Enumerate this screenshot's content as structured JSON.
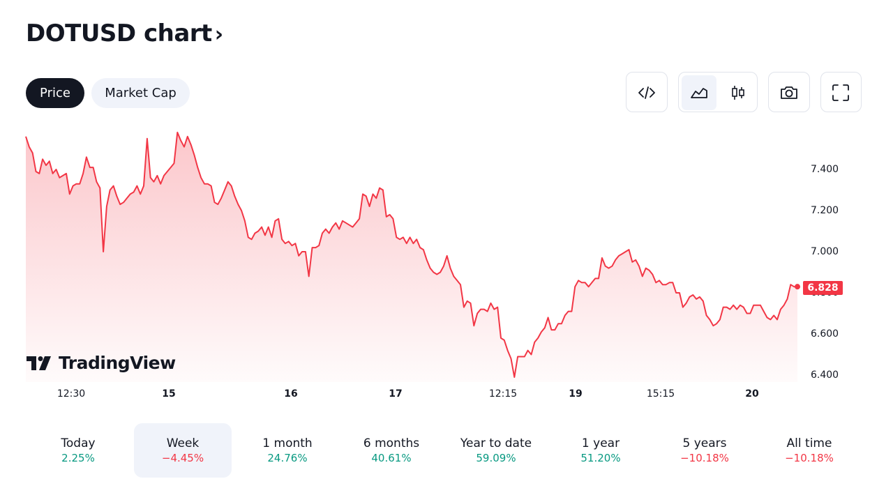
{
  "header": {
    "title": "DOTUSD chart",
    "chevron": "›"
  },
  "tabs": [
    {
      "label": "Price",
      "active": true
    },
    {
      "label": "Market Cap",
      "active": false
    }
  ],
  "toolbar": {
    "embed_icon": "code-icon",
    "area_icon": "area-chart-icon",
    "candle_icon": "candlestick-icon",
    "camera_icon": "camera-icon",
    "fullscreen_icon": "fullscreen-icon"
  },
  "colors": {
    "line": "#f23645",
    "positive": "#089981",
    "negative": "#f23645",
    "dark": "#131722",
    "light_bg": "#f0f3fa"
  },
  "branding": {
    "logo_text": "TradingView"
  },
  "chart_data": {
    "type": "area",
    "yticks": [
      "7.400",
      "7.200",
      "7.000",
      "6.800",
      "6.600",
      "6.400"
    ],
    "ylim": [
      6.35,
      7.6
    ],
    "xticks": [
      {
        "label": "12:30",
        "bold": false
      },
      {
        "label": "15",
        "bold": true
      },
      {
        "label": "16",
        "bold": true
      },
      {
        "label": "17",
        "bold": true
      },
      {
        "label": "12:15",
        "bold": false
      },
      {
        "label": "19",
        "bold": true
      },
      {
        "label": "15:15",
        "bold": false
      },
      {
        "label": "20",
        "bold": true
      }
    ],
    "last_price": "6.828",
    "values": [
      7.56,
      7.51,
      7.48,
      7.39,
      7.38,
      7.45,
      7.42,
      7.44,
      7.38,
      7.4,
      7.36,
      7.37,
      7.38,
      7.28,
      7.32,
      7.33,
      7.33,
      7.38,
      7.46,
      7.41,
      7.41,
      7.34,
      7.31,
      7.0,
      7.22,
      7.3,
      7.32,
      7.27,
      7.23,
      7.24,
      7.26,
      7.28,
      7.29,
      7.32,
      7.28,
      7.32,
      7.55,
      7.36,
      7.34,
      7.37,
      7.33,
      7.37,
      7.39,
      7.41,
      7.43,
      7.58,
      7.54,
      7.51,
      7.56,
      7.52,
      7.47,
      7.41,
      7.36,
      7.33,
      7.33,
      7.32,
      7.24,
      7.23,
      7.26,
      7.3,
      7.34,
      7.32,
      7.27,
      7.23,
      7.2,
      7.15,
      7.07,
      7.06,
      7.09,
      7.1,
      7.12,
      7.08,
      7.12,
      7.07,
      7.15,
      7.16,
      7.06,
      7.04,
      7.05,
      7.03,
      7.04,
      6.98,
      7.0,
      7.0,
      6.88,
      7.02,
      7.02,
      7.03,
      7.09,
      7.11,
      7.09,
      7.12,
      7.14,
      7.11,
      7.15,
      7.14,
      7.13,
      7.12,
      7.14,
      7.16,
      7.28,
      7.27,
      7.22,
      7.28,
      7.26,
      7.31,
      7.3,
      7.17,
      7.18,
      7.16,
      7.07,
      7.06,
      7.07,
      7.04,
      7.07,
      7.04,
      7.06,
      7.02,
      7.01,
      6.96,
      6.92,
      6.9,
      6.89,
      6.9,
      6.93,
      6.98,
      6.92,
      6.88,
      6.86,
      6.84,
      6.73,
      6.76,
      6.75,
      6.64,
      6.7,
      6.72,
      6.72,
      6.71,
      6.75,
      6.72,
      6.73,
      6.58,
      6.57,
      6.52,
      6.48,
      6.39,
      6.49,
      6.49,
      6.49,
      6.52,
      6.5,
      6.56,
      6.58,
      6.61,
      6.63,
      6.68,
      6.62,
      6.62,
      6.65,
      6.65,
      6.69,
      6.71,
      6.71,
      6.83,
      6.86,
      6.85,
      6.85,
      6.83,
      6.85,
      6.87,
      6.87,
      6.97,
      6.93,
      6.92,
      6.93,
      6.96,
      6.98,
      6.99,
      7.0,
      7.01,
      6.95,
      6.96,
      6.93,
      6.88,
      6.92,
      6.91,
      6.89,
      6.85,
      6.86,
      6.84,
      6.84,
      6.85,
      6.85,
      6.8,
      6.8,
      6.73,
      6.75,
      6.78,
      6.79,
      6.77,
      6.78,
      6.76,
      6.69,
      6.67,
      6.64,
      6.65,
      6.67,
      6.73,
      6.73,
      6.72,
      6.74,
      6.72,
      6.74,
      6.73,
      6.7,
      6.7,
      6.74,
      6.74,
      6.74,
      6.71,
      6.68,
      6.67,
      6.69,
      6.67,
      6.72,
      6.74,
      6.77,
      6.84,
      6.83,
      6.83
    ]
  },
  "periods": [
    {
      "label": "Today",
      "value": "2.25%",
      "sign": "pos",
      "selected": false
    },
    {
      "label": "Week",
      "value": "−4.45%",
      "sign": "neg",
      "selected": true
    },
    {
      "label": "1 month",
      "value": "24.76%",
      "sign": "pos",
      "selected": false
    },
    {
      "label": "6 months",
      "value": "40.61%",
      "sign": "pos",
      "selected": false
    },
    {
      "label": "Year to date",
      "value": "59.09%",
      "sign": "pos",
      "selected": false
    },
    {
      "label": "1 year",
      "value": "51.20%",
      "sign": "pos",
      "selected": false
    },
    {
      "label": "5 years",
      "value": "−10.18%",
      "sign": "neg",
      "selected": false
    },
    {
      "label": "All time",
      "value": "−10.18%",
      "sign": "neg",
      "selected": false
    }
  ]
}
